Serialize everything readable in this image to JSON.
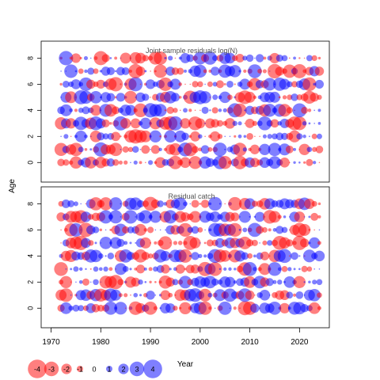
{
  "chart_data": {
    "type": "scatter",
    "ylabel": "Age",
    "xlabel": "Year",
    "colors": {
      "negative": "#ff0000",
      "positive": "#0000ff"
    },
    "x_ticks": [
      "1970",
      "1980",
      "1990",
      "2000",
      "2010",
      "2020"
    ],
    "y_ticks": [
      "0",
      "2",
      "4",
      "6",
      "8"
    ],
    "xlim": [
      1968,
      2026
    ],
    "years": [
      1972,
      2024
    ],
    "ages": [
      0,
      8
    ],
    "panels": [
      {
        "title": "Joint sample residuals log(N)",
        "ylim": [
          -1.5,
          9.3
        ],
        "seed": 11
      },
      {
        "title": "Residual catch",
        "ylim": [
          -1.5,
          9.3
        ],
        "seed": 29
      }
    ],
    "legend": {
      "values": [
        -4,
        -3,
        -2,
        -1,
        0,
        1,
        2,
        3,
        4
      ],
      "labels": [
        "-4",
        "-3",
        "-2",
        "-1",
        "0",
        "1",
        "2",
        "3",
        "4"
      ]
    }
  }
}
